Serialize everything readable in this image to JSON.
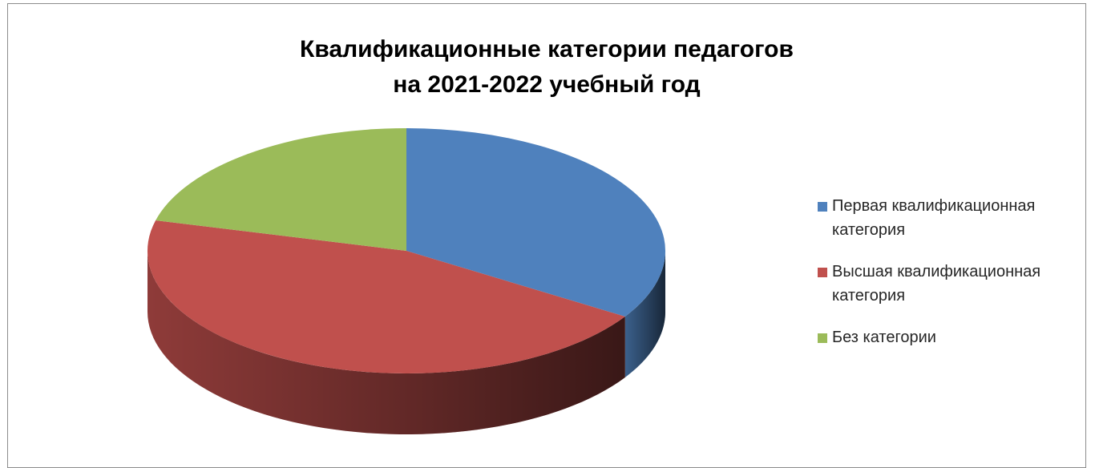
{
  "chart_data": {
    "type": "pie",
    "title_lines": [
      "Квалификационные категории педагогов",
      "на 2021-2022 учебный год"
    ],
    "categories": [
      "Первая квалификационная категория",
      "Высшая квалификационная категория",
      "Без категории"
    ],
    "values": [
      34,
      45,
      21
    ],
    "colors": [
      "#4f81bd",
      "#c0504d",
      "#9bbb59"
    ],
    "legend_position": "right",
    "style": "3d"
  },
  "legend": {
    "items": [
      {
        "label_line1": "Первая квалификационная",
        "label_line2": "категория",
        "color": "#4f81bd"
      },
      {
        "label_line1": "Высшая квалификационная",
        "label_line2": "категория",
        "color": "#c0504d"
      },
      {
        "label_line1": "Без категории",
        "label_line2": "",
        "color": "#9bbb59"
      }
    ]
  }
}
